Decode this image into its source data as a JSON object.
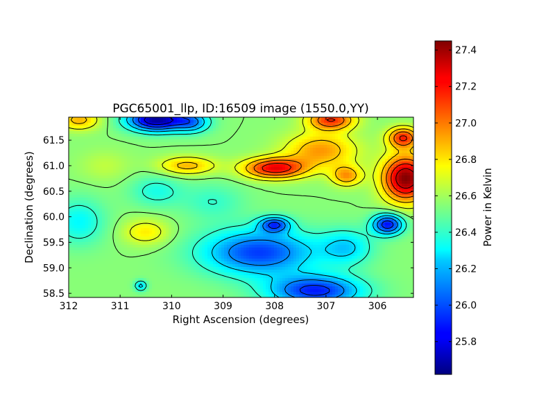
{
  "chart_data": {
    "type": "heatmap",
    "title": "PGC65001_llp, ID:16509 image (1550.0,YY)",
    "xlabel": "Right Ascension (degrees)",
    "ylabel": "Declination (degrees)",
    "colorbar_label": "Power in Kelvin",
    "colormap": "jet",
    "x_inverted": true,
    "xlim": [
      312.0,
      305.3
    ],
    "ylim": [
      58.42,
      61.95
    ],
    "x_ticks": [
      "312",
      "311",
      "310",
      "309",
      "308",
      "307",
      "306"
    ],
    "x_tick_values": [
      312,
      311,
      310,
      309,
      308,
      307,
      306
    ],
    "y_ticks": [
      "58.5",
      "59.0",
      "59.5",
      "60.0",
      "60.5",
      "61.0",
      "61.5"
    ],
    "y_tick_values": [
      58.5,
      59.0,
      59.5,
      60.0,
      60.5,
      61.0,
      61.5
    ],
    "color_range": [
      25.62,
      27.45
    ],
    "colorbar_ticks": [
      "25.8",
      "26.0",
      "26.2",
      "26.4",
      "26.6",
      "26.8",
      "27.0",
      "27.2",
      "27.4"
    ],
    "colorbar_tick_values": [
      25.8,
      26.0,
      26.2,
      26.4,
      26.6,
      26.8,
      27.0,
      27.2,
      27.4
    ],
    "background_level": 26.55,
    "features": [
      {
        "ra": 310.3,
        "dec": 61.9,
        "value": 25.65,
        "width_ra": 0.55,
        "width_dec": 0.22
      },
      {
        "ra": 309.6,
        "dec": 61.85,
        "value": 26.15,
        "width_ra": 0.35,
        "width_dec": 0.2
      },
      {
        "ra": 311.8,
        "dec": 61.9,
        "value": 26.9,
        "width_ra": 0.4,
        "width_dec": 0.2
      },
      {
        "ra": 308.0,
        "dec": 60.95,
        "value": 27.25,
        "width_ra": 0.6,
        "width_dec": 0.2
      },
      {
        "ra": 309.7,
        "dec": 61.0,
        "value": 26.9,
        "width_ra": 0.55,
        "width_dec": 0.18
      },
      {
        "ra": 306.9,
        "dec": 61.9,
        "value": 27.15,
        "width_ra": 0.45,
        "width_dec": 0.2
      },
      {
        "ra": 305.45,
        "dec": 60.75,
        "value": 27.45,
        "width_ra": 0.45,
        "width_dec": 0.45
      },
      {
        "ra": 305.5,
        "dec": 61.55,
        "value": 27.15,
        "width_ra": 0.3,
        "width_dec": 0.2
      },
      {
        "ra": 307.1,
        "dec": 61.3,
        "value": 26.95,
        "width_ra": 0.7,
        "width_dec": 0.35
      },
      {
        "ra": 306.6,
        "dec": 60.8,
        "value": 26.95,
        "width_ra": 0.3,
        "width_dec": 0.2
      },
      {
        "ra": 308.3,
        "dec": 59.3,
        "value": 25.95,
        "width_ra": 1.1,
        "width_dec": 0.45
      },
      {
        "ra": 307.2,
        "dec": 58.55,
        "value": 25.9,
        "width_ra": 0.9,
        "width_dec": 0.3
      },
      {
        "ra": 305.8,
        "dec": 59.85,
        "value": 25.85,
        "width_ra": 0.3,
        "width_dec": 0.2
      },
      {
        "ra": 310.5,
        "dec": 59.7,
        "value": 26.8,
        "width_ra": 0.45,
        "width_dec": 0.25
      },
      {
        "ra": 311.3,
        "dec": 61.0,
        "value": 26.65,
        "width_ra": 0.5,
        "width_dec": 0.3
      },
      {
        "ra": 311.8,
        "dec": 59.9,
        "value": 26.3,
        "width_ra": 0.5,
        "width_dec": 0.45
      },
      {
        "ra": 310.3,
        "dec": 60.5,
        "value": 26.35,
        "width_ra": 0.5,
        "width_dec": 0.3
      },
      {
        "ra": 309.2,
        "dec": 60.3,
        "value": 26.4,
        "width_ra": 0.6,
        "width_dec": 0.35
      },
      {
        "ra": 306.6,
        "dec": 59.4,
        "value": 26.25,
        "width_ra": 0.5,
        "width_dec": 0.35
      },
      {
        "ra": 305.6,
        "dec": 59.0,
        "value": 26.55,
        "width_ra": 0.4,
        "width_dec": 0.4
      },
      {
        "ra": 311.0,
        "dec": 58.7,
        "value": 26.55,
        "width_ra": 0.5,
        "width_dec": 0.3
      },
      {
        "ra": 310.6,
        "dec": 58.65,
        "value": 26.2,
        "width_ra": 0.12,
        "width_dec": 0.1
      },
      {
        "ra": 308.0,
        "dec": 59.85,
        "value": 26.0,
        "width_ra": 0.3,
        "width_dec": 0.15
      }
    ]
  }
}
